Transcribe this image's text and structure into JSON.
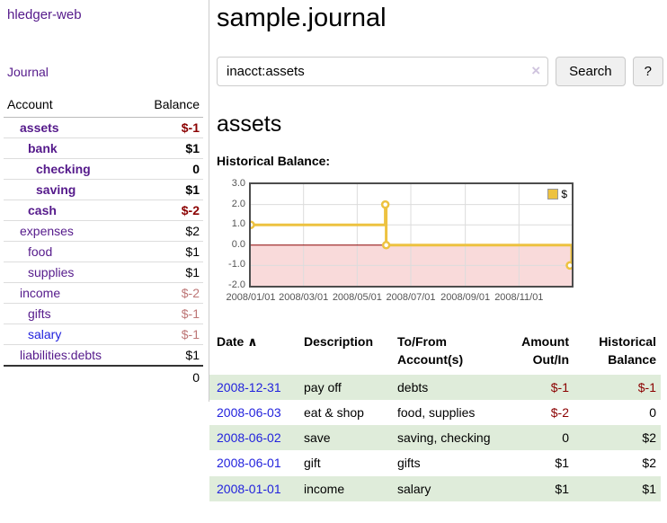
{
  "sidebar": {
    "app_title": "hledger-web",
    "journal_label": "Journal",
    "accounts_table": {
      "headers": {
        "account": "Account",
        "balance": "Balance"
      },
      "rows": [
        {
          "name": "assets",
          "indent": 0,
          "balance": "$-1",
          "bold": true,
          "name_color": "purple",
          "balance_tone": "neg-strong"
        },
        {
          "name": "bank",
          "indent": 1,
          "balance": "$1",
          "bold": true,
          "name_color": "purple",
          "balance_tone": "plain"
        },
        {
          "name": "checking",
          "indent": 2,
          "balance": "0",
          "bold": true,
          "name_color": "purple",
          "balance_tone": "plain"
        },
        {
          "name": "saving",
          "indent": 2,
          "balance": "$1",
          "bold": true,
          "name_color": "purple",
          "balance_tone": "plain"
        },
        {
          "name": "cash",
          "indent": 1,
          "balance": "$-2",
          "bold": true,
          "name_color": "purple",
          "balance_tone": "neg-strong"
        },
        {
          "name": "expenses",
          "indent": 0,
          "balance": "$2",
          "bold": false,
          "name_color": "purple",
          "balance_tone": "plain"
        },
        {
          "name": "food",
          "indent": 1,
          "balance": "$1",
          "bold": false,
          "name_color": "purple",
          "balance_tone": "plain"
        },
        {
          "name": "supplies",
          "indent": 1,
          "balance": "$1",
          "bold": false,
          "name_color": "purple",
          "balance_tone": "plain"
        },
        {
          "name": "income",
          "indent": 0,
          "balance": "$-2",
          "bold": false,
          "name_color": "purple",
          "balance_tone": "neg-soft"
        },
        {
          "name": "gifts",
          "indent": 1,
          "balance": "$-1",
          "bold": false,
          "name_color": "purple",
          "balance_tone": "neg-soft"
        },
        {
          "name": "salary",
          "indent": 1,
          "balance": "$-1",
          "bold": false,
          "name_color": "blue",
          "balance_tone": "neg-soft"
        },
        {
          "name": "liabilities:debts",
          "indent": 0,
          "balance": "$1",
          "bold": false,
          "name_color": "purple",
          "balance_tone": "plain"
        }
      ],
      "total": "0"
    }
  },
  "main": {
    "title": "sample.journal",
    "search": {
      "query": "inacct:assets",
      "clear_icon": "×",
      "search_label": "Search",
      "help_label": "?"
    },
    "account_heading": "assets",
    "chart_label": "Historical Balance:"
  },
  "chart_data": {
    "type": "line",
    "title": "Historical Balance",
    "step": true,
    "series": [
      {
        "name": "$",
        "color": "#edc240",
        "points": [
          {
            "date": "2008-01-01",
            "value": 1
          },
          {
            "date": "2008-06-02",
            "value": 2
          },
          {
            "date": "2008-06-03",
            "value": 0
          },
          {
            "date": "2008-12-31",
            "value": -1
          }
        ]
      }
    ],
    "x_range": [
      "2008-01-01",
      "2008-12-31"
    ],
    "y_range": [
      -2,
      3
    ],
    "y_ticks": [
      "3.0",
      "2.0",
      "1.0",
      "0.0",
      "-1.0",
      "-2.0"
    ],
    "x_ticks": [
      {
        "date": "2008-01-01",
        "label": "2008/01/01"
      },
      {
        "date": "2008-03-01",
        "label": "2008/03/01"
      },
      {
        "date": "2008-05-01",
        "label": "2008/05/01"
      },
      {
        "date": "2008-07-01",
        "label": "2008/07/01"
      },
      {
        "date": "2008-09-01",
        "label": "2008/09/01"
      },
      {
        "date": "2008-11-01",
        "label": "2008/11/01"
      }
    ],
    "grid": true,
    "grid_color": "#dcdcdc",
    "negative_region_color": "#f9dada",
    "zero_line_color": "#8b0000",
    "legend": {
      "label": "$",
      "position": "top-right"
    }
  },
  "transactions": {
    "headers": {
      "date": "Date",
      "sort_indicator": "∧",
      "description": "Description",
      "accounts": "To/From Account(s)",
      "amount": "Amount Out/In",
      "balance": "Historical Balance"
    },
    "rows": [
      {
        "date": "2008-12-31",
        "description": "pay off",
        "accounts": "debts",
        "amount": "$-1",
        "amount_negative": true,
        "balance": "$-1",
        "balance_negative": true
      },
      {
        "date": "2008-06-03",
        "description": "eat & shop",
        "accounts": "food, supplies",
        "amount": "$-2",
        "amount_negative": true,
        "balance": "0",
        "balance_negative": false
      },
      {
        "date": "2008-06-02",
        "description": "save",
        "accounts": "saving, checking",
        "amount": "0",
        "amount_negative": false,
        "balance": "$2",
        "balance_negative": false
      },
      {
        "date": "2008-06-01",
        "description": "gift",
        "accounts": "gifts",
        "amount": "$1",
        "amount_negative": false,
        "balance": "$2",
        "balance_negative": false
      },
      {
        "date": "2008-01-01",
        "description": "income",
        "accounts": "salary",
        "amount": "$1",
        "amount_negative": false,
        "balance": "$1",
        "balance_negative": false
      }
    ]
  }
}
